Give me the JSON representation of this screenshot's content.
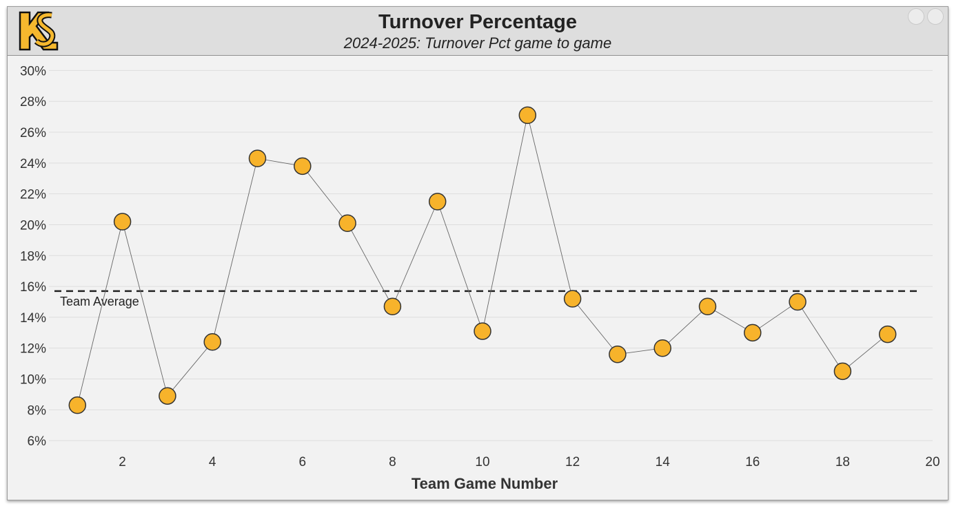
{
  "header": {
    "title": "Turnover Percentage",
    "subtitle": "2024-2025: Turnover Pct game to game",
    "logo_icon": "ks-logo-icon"
  },
  "colors": {
    "point_fill": "#f7b32b",
    "point_stroke": "#333333",
    "line": "#666666",
    "avg_line": "#222222",
    "grid": "#dddddd",
    "logo_gold": "#f5b82e",
    "logo_black": "#111111"
  },
  "chart_data": {
    "type": "scatter",
    "title": "Turnover Percentage",
    "subtitle": "2024-2025: Turnover Pct game to game",
    "xlabel": "Team Game Number",
    "ylabel": "",
    "xlim": [
      0,
      20
    ],
    "ylim": [
      4,
      31
    ],
    "xticks": [
      2,
      4,
      6,
      8,
      10,
      12,
      14,
      16,
      18,
      20
    ],
    "yticks": [
      6,
      8,
      10,
      12,
      14,
      16,
      18,
      20,
      22,
      24,
      26,
      28,
      30
    ],
    "ytick_suffix": "%",
    "grid": true,
    "connect_points": true,
    "series": [
      {
        "x": [
          1,
          2,
          3,
          4,
          5,
          6,
          7,
          8,
          9,
          10,
          11,
          12,
          13,
          14,
          15,
          16,
          17,
          18,
          19
        ],
        "values": [
          8.3,
          20.2,
          8.9,
          12.4,
          24.3,
          23.8,
          20.1,
          14.7,
          21.5,
          13.1,
          27.1,
          15.2,
          11.6,
          12.0,
          14.7,
          13.0,
          15.0,
          10.5,
          12.9
        ]
      }
    ],
    "reference_line": {
      "value": 15.7,
      "label": "Team Average",
      "style": "dashed"
    }
  }
}
